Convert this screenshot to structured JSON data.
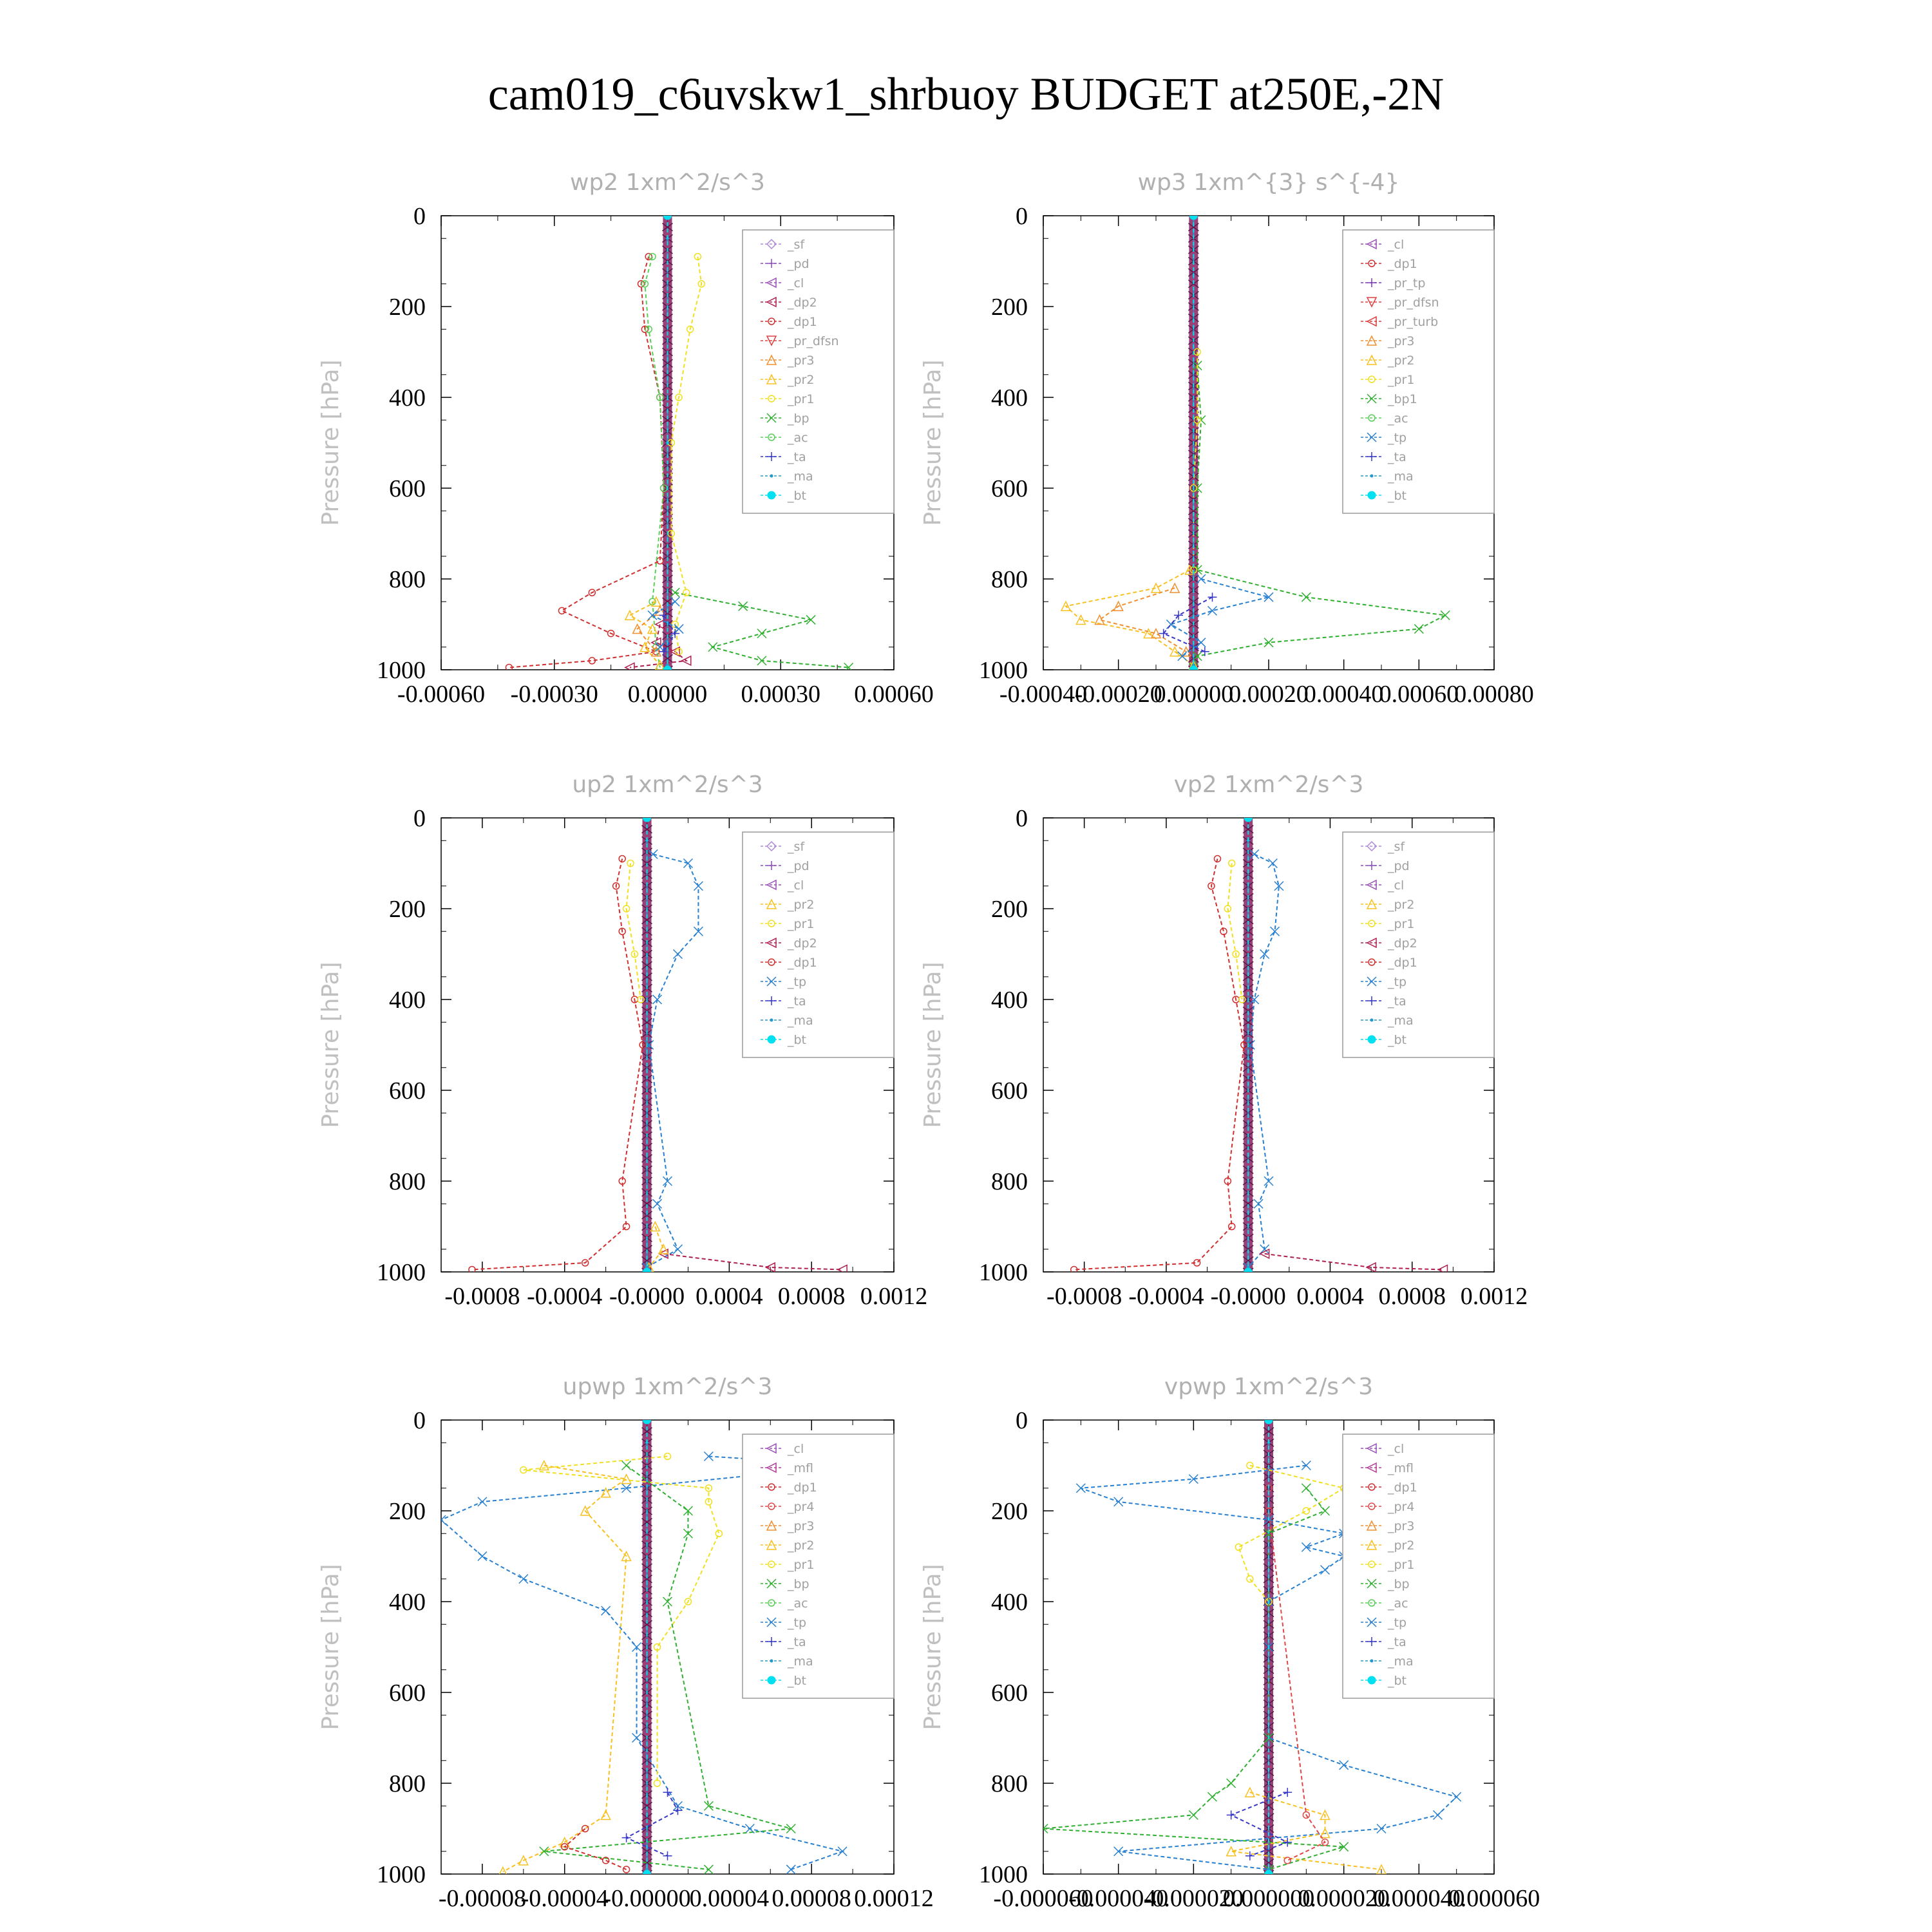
{
  "figure": {
    "title": "cam019_c6uvskw1_shrbuoy  BUDGET at250E,-2N"
  },
  "colors": {
    "_sf": "#b088d8",
    "_pd": "#8a4ec0",
    "_cl": "#9b4fb8",
    "_mfl": "#b03a9a",
    "_dp2": "#b02050",
    "_dp1": "#d03030",
    "_pr_dfsn": "#e04040",
    "_pr_tp": "#7a3ab8",
    "_pr_turb": "#d83a3a",
    "_pr4": "#e04848",
    "_pr3": "#f09030",
    "_pr2": "#f8c020",
    "_pr1": "#f0e020",
    "_bp": "#30b030",
    "_bp1": "#30b030",
    "_ac": "#58d058",
    "_tp": "#2880d0",
    "_ta": "#3838c8",
    "_ma": "#2898c8",
    "_bt": "#00e0f0"
  },
  "chart_data": [
    {
      "type": "line",
      "title": "wp2   1xm^2/s^3",
      "ylabel": "Pressure  [hPa]",
      "xlim": [
        -0.0006,
        0.0006
      ],
      "ylim": [
        1000,
        0
      ],
      "xticks": [
        "-0.00060",
        "-0.00030",
        "0.00000",
        "0.00030",
        "0.00060"
      ],
      "yticks": [
        "0",
        "200",
        "400",
        "600",
        "800",
        "1000"
      ],
      "legend": [
        "_sf",
        "_pd",
        "_cl",
        "_dp2",
        "_dp1",
        "_pr_dfsn",
        "_pr3",
        "_pr2",
        "_pr1",
        "_bp",
        "_ac",
        "_ta",
        "_ma",
        "_bt"
      ],
      "series": [
        {
          "name": "_dp1",
          "p": [
            90,
            150,
            250,
            400,
            600,
            760,
            830,
            870,
            920,
            960,
            980,
            995
          ],
          "v": [
            -5e-05,
            -7e-05,
            -6e-05,
            -2e-05,
            -1e-05,
            -2e-05,
            -0.0002,
            -0.00028,
            -0.00015,
            -3e-05,
            -0.0002,
            -0.00042
          ]
        },
        {
          "name": "_dp2",
          "p": [
            900,
            940,
            960,
            980,
            995
          ],
          "v": [
            -2e-05,
            -3e-05,
            2e-05,
            5e-05,
            -0.0001
          ]
        },
        {
          "name": "_bp",
          "p": [
            830,
            860,
            890,
            920,
            950,
            980,
            995
          ],
          "v": [
            2e-05,
            0.0002,
            0.00038,
            0.00025,
            0.00012,
            0.00025,
            0.00048
          ]
        },
        {
          "name": "_pr1",
          "p": [
            90,
            150,
            250,
            400,
            500,
            700,
            830,
            900,
            960
          ],
          "v": [
            8e-05,
            9e-05,
            6e-05,
            3e-05,
            1e-05,
            1e-05,
            5e-05,
            2e-05,
            3e-05
          ]
        },
        {
          "name": "_ac",
          "p": [
            90,
            150,
            250,
            400,
            600,
            850,
            950,
            995
          ],
          "v": [
            -4e-05,
            -6e-05,
            -5e-05,
            -2e-05,
            -1e-05,
            -4e-05,
            -3e-05,
            -2e-05
          ]
        },
        {
          "name": "_pr2",
          "p": [
            850,
            880,
            910,
            950,
            990
          ],
          "v": [
            -3e-05,
            -0.0001,
            -4e-05,
            -6e-05,
            -2e-05
          ]
        },
        {
          "name": "_pr3",
          "p": [
            870,
            910,
            960
          ],
          "v": [
            -2e-05,
            -8e-05,
            -3e-05
          ]
        },
        {
          "name": "_tp",
          "p": [
            850,
            880,
            910,
            950
          ],
          "v": [
            2e-05,
            -4e-05,
            3e-05,
            -2e-05
          ]
        },
        {
          "name": "_ta",
          "p": [
            880,
            920,
            960
          ],
          "v": [
            -1e-05,
            2e-05,
            -1e-05
          ]
        },
        {
          "name": "_ma",
          "p": [
            50,
            500,
            990
          ],
          "v": [
            0.0,
            0.0,
            0.0
          ]
        },
        {
          "name": "_bt",
          "p": [
            0,
            1000
          ],
          "v": [
            0.0,
            0.0
          ]
        }
      ]
    },
    {
      "type": "line",
      "title": "wp3   1xm^{3} s^{-4}",
      "ylabel": "Pressure  [hPa]",
      "xlim": [
        -0.0004,
        0.0008
      ],
      "ylim": [
        1000,
        0
      ],
      "xticks": [
        "-0.00040",
        "-0.00020",
        "0.00000",
        "0.00020",
        "0.00040",
        "0.00060",
        "0.00080"
      ],
      "yticks": [
        "0",
        "200",
        "400",
        "600",
        "800",
        "1000"
      ],
      "legend": [
        "_cl",
        "_dp1",
        "_pr_tp",
        "_pr_dfsn",
        "_pr_turb",
        "_pr3",
        "_pr2",
        "_pr1",
        "_bp1",
        "_ac",
        "_tp",
        "_ta",
        "_ma",
        "_bt"
      ],
      "series": [
        {
          "name": "_bp1",
          "p": [
            330,
            450,
            600,
            780,
            840,
            880,
            910,
            940,
            970,
            995
          ],
          "v": [
            1e-05,
            2e-05,
            1e-05,
            1e-05,
            0.0003,
            0.00067,
            0.0006,
            0.0002,
            1e-05,
            0.0
          ]
        },
        {
          "name": "_pr2",
          "p": [
            780,
            820,
            860,
            890,
            920,
            960,
            990
          ],
          "v": [
            -1e-05,
            -0.0001,
            -0.00034,
            -0.0003,
            -0.00012,
            -5e-05,
            0.0
          ]
        },
        {
          "name": "_pr3",
          "p": [
            820,
            860,
            890,
            920,
            960
          ],
          "v": [
            -5e-05,
            -0.0002,
            -0.00025,
            -0.0001,
            -2e-05
          ]
        },
        {
          "name": "_tp",
          "p": [
            800,
            840,
            870,
            900,
            940,
            970
          ],
          "v": [
            2e-05,
            0.0002,
            5e-05,
            -6e-05,
            2e-05,
            -3e-05
          ]
        },
        {
          "name": "_ta",
          "p": [
            840,
            880,
            920,
            960
          ],
          "v": [
            5e-05,
            -4e-05,
            -8e-05,
            3e-05
          ]
        },
        {
          "name": "_pr1",
          "p": [
            300,
            450,
            600,
            780
          ],
          "v": [
            1e-05,
            1e-05,
            0.0,
            0.0
          ]
        },
        {
          "name": "_ma",
          "p": [
            0,
            990
          ],
          "v": [
            0.0,
            0.0
          ]
        },
        {
          "name": "_bt",
          "p": [
            0,
            1000
          ],
          "v": [
            0.0,
            0.0
          ]
        }
      ]
    },
    {
      "type": "line",
      "title": "up2   1xm^2/s^3",
      "ylabel": "Pressure  [hPa]",
      "xlim": [
        -0.001,
        0.0012
      ],
      "ylim": [
        1000,
        0
      ],
      "xticks": [
        "-0.0008",
        "-0.0004",
        "-0.0000",
        "0.0004",
        "0.0008",
        "0.0012"
      ],
      "yticks": [
        "0",
        "200",
        "400",
        "600",
        "800",
        "1000"
      ],
      "legend": [
        "_sf",
        "_pd",
        "_cl",
        "_pr2",
        "_pr1",
        "_dp2",
        "_dp1",
        "_tp",
        "_ta",
        "_ma",
        "_bt"
      ],
      "series": [
        {
          "name": "_tp",
          "p": [
            80,
            100,
            150,
            250,
            300,
            400,
            500,
            800,
            850,
            950,
            990
          ],
          "v": [
            3e-05,
            0.0002,
            0.00025,
            0.00025,
            0.00015,
            5e-05,
            1e-05,
            0.0001,
            5e-05,
            0.00015,
            0.0
          ]
        },
        {
          "name": "_dp1",
          "p": [
            90,
            150,
            250,
            400,
            500,
            800,
            900,
            980,
            995
          ],
          "v": [
            -0.00012,
            -0.00015,
            -0.00012,
            -6e-05,
            -2e-05,
            -0.00012,
            -0.0001,
            -0.0003,
            -0.00085
          ]
        },
        {
          "name": "_pr1",
          "p": [
            100,
            200,
            300,
            400
          ],
          "v": [
            -8e-05,
            -0.0001,
            -6e-05,
            -3e-05
          ]
        },
        {
          "name": "_dp2",
          "p": [
            960,
            990,
            995
          ],
          "v": [
            8e-05,
            0.0006,
            0.00095
          ]
        },
        {
          "name": "_pr2",
          "p": [
            900,
            950,
            990
          ],
          "v": [
            4e-05,
            8e-05,
            1e-05
          ]
        },
        {
          "name": "_ma",
          "p": [
            50,
            990
          ],
          "v": [
            0.0,
            0.0
          ]
        },
        {
          "name": "_bt",
          "p": [
            0,
            1000
          ],
          "v": [
            0.0,
            0.0
          ]
        }
      ]
    },
    {
      "type": "line",
      "title": "vp2   1xm^2/s^3",
      "ylabel": "Pressure  [hPa]",
      "xlim": [
        -0.001,
        0.0012
      ],
      "ylim": [
        1000,
        0
      ],
      "xticks": [
        "-0.0008",
        "-0.0004",
        "-0.0000",
        "0.0004",
        "0.0008",
        "0.0012"
      ],
      "yticks": [
        "0",
        "200",
        "400",
        "600",
        "800",
        "1000"
      ],
      "legend": [
        "_sf",
        "_pd",
        "_cl",
        "_pr2",
        "_pr1",
        "_dp2",
        "_dp1",
        "_tp",
        "_ta",
        "_ma",
        "_bt"
      ],
      "series": [
        {
          "name": "_tp",
          "p": [
            80,
            100,
            150,
            250,
            300,
            400,
            500,
            800,
            850,
            950,
            990
          ],
          "v": [
            3e-05,
            0.00012,
            0.00015,
            0.00013,
            8e-05,
            3e-05,
            1e-05,
            0.0001,
            5e-05,
            8e-05,
            0.0
          ]
        },
        {
          "name": "_dp1",
          "p": [
            90,
            150,
            250,
            400,
            500,
            800,
            900,
            980,
            995
          ],
          "v": [
            -0.00015,
            -0.00018,
            -0.00012,
            -6e-05,
            -2e-05,
            -0.0001,
            -8e-05,
            -0.00025,
            -0.00085
          ]
        },
        {
          "name": "_pr1",
          "p": [
            100,
            200,
            300,
            400
          ],
          "v": [
            -8e-05,
            -0.0001,
            -6e-05,
            -3e-05
          ]
        },
        {
          "name": "_dp2",
          "p": [
            960,
            990,
            995
          ],
          "v": [
            8e-05,
            0.0006,
            0.00095
          ]
        },
        {
          "name": "_ma",
          "p": [
            50,
            990
          ],
          "v": [
            0.0,
            0.0
          ]
        },
        {
          "name": "_bt",
          "p": [
            0,
            1000
          ],
          "v": [
            0.0,
            0.0
          ]
        }
      ]
    },
    {
      "type": "line",
      "title": "upwp   1xm^2/s^3",
      "ylabel": "Pressure  [hPa]",
      "xlim": [
        -0.0001,
        0.00012
      ],
      "ylim": [
        1000,
        0
      ],
      "xticks": [
        "-0.00008",
        "-0.00004",
        "-0.00000",
        "0.00004",
        "0.00008",
        "0.00012"
      ],
      "yticks": [
        "0",
        "200",
        "400",
        "600",
        "800",
        "1000"
      ],
      "legend": [
        "_cl",
        "_mfl",
        "_dp1",
        "_pr4",
        "_pr3",
        "_pr2",
        "_pr1",
        "_bp",
        "_ac",
        "_tp",
        "_ta",
        "_ma",
        "_bt"
      ],
      "series": [
        {
          "name": "_tp",
          "p": [
            80,
            100,
            150,
            180,
            220,
            300,
            350,
            420,
            500,
            700,
            850,
            900,
            950,
            990
          ],
          "v": [
            3e-05,
            0.0001,
            -1e-05,
            -8e-05,
            -0.0001,
            -8e-05,
            -6e-05,
            -2e-05,
            -5e-06,
            -5e-06,
            1.5e-05,
            5e-05,
            9.5e-05,
            7e-05
          ]
        },
        {
          "name": "_pr1",
          "p": [
            80,
            110,
            150,
            180,
            250,
            400,
            500,
            800
          ],
          "v": [
            1e-05,
            -6e-05,
            3e-05,
            3e-05,
            3.5e-05,
            2e-05,
            5e-06,
            5e-06
          ]
        },
        {
          "name": "_pr2",
          "p": [
            100,
            130,
            160,
            200,
            300,
            870,
            930,
            970,
            995
          ],
          "v": [
            -5e-05,
            -1e-05,
            -2e-05,
            -3e-05,
            -1e-05,
            -2e-05,
            -4e-05,
            -6e-05,
            -7e-05
          ]
        },
        {
          "name": "_bp",
          "p": [
            100,
            200,
            250,
            400,
            850,
            900,
            950,
            990
          ],
          "v": [
            -1e-05,
            2e-05,
            2e-05,
            1e-05,
            3e-05,
            7e-05,
            -5e-05,
            3e-05
          ]
        },
        {
          "name": "_dp1",
          "p": [
            900,
            940,
            970,
            990
          ],
          "v": [
            -3e-05,
            -4e-05,
            -2e-05,
            -1e-05
          ]
        },
        {
          "name": "_ta",
          "p": [
            820,
            860,
            920,
            960
          ],
          "v": [
            1e-05,
            1.5e-05,
            -1e-05,
            1e-05
          ]
        },
        {
          "name": "_ma",
          "p": [
            50,
            990
          ],
          "v": [
            0.0,
            0.0
          ]
        },
        {
          "name": "_bt",
          "p": [
            0,
            1000
          ],
          "v": [
            0.0,
            0.0
          ]
        }
      ]
    },
    {
      "type": "line",
      "title": "vpwp   1xm^2/s^3",
      "ylabel": "Pressure  [hPa]",
      "xlim": [
        -6e-05,
        6e-05
      ],
      "ylim": [
        1000,
        0
      ],
      "xticks": [
        "-0.000060",
        "-0.000040",
        "-0.000020",
        "0.000000",
        "0.000020",
        "0.000040",
        "0.000060"
      ],
      "yticks": [
        "0",
        "200",
        "400",
        "600",
        "800",
        "1000"
      ],
      "legend": [
        "_cl",
        "_mfl",
        "_dp1",
        "_pr4",
        "_pr3",
        "_pr2",
        "_pr1",
        "_bp",
        "_ac",
        "_tp",
        "_ta",
        "_ma",
        "_bt"
      ],
      "series": [
        {
          "name": "_tp",
          "p": [
            100,
            130,
            150,
            180,
            220,
            250,
            280,
            300,
            330,
            400,
            500,
            700,
            760,
            830,
            870,
            900,
            950,
            990
          ],
          "v": [
            1e-05,
            -2e-05,
            -5e-05,
            -4e-05,
            0.0,
            2e-05,
            1e-05,
            2e-05,
            1.5e-05,
            0.0,
            0.0,
            0.0,
            2e-05,
            5e-05,
            4.5e-05,
            3e-05,
            -4e-05,
            0.0
          ]
        },
        {
          "name": "_pr1",
          "p": [
            100,
            150,
            200,
            280,
            350,
            400
          ],
          "v": [
            -5e-06,
            2e-05,
            1e-05,
            -8e-06,
            -5e-06,
            0.0
          ]
        },
        {
          "name": "_bp",
          "p": [
            150,
            200,
            250,
            700,
            800,
            830,
            870,
            900,
            940,
            990
          ],
          "v": [
            1e-05,
            1.5e-05,
            0.0,
            0.0,
            -1e-05,
            -1.5e-05,
            -2e-05,
            -6e-05,
            2e-05,
            0.0
          ]
        },
        {
          "name": "_pr2",
          "p": [
            820,
            870,
            910,
            950,
            990
          ],
          "v": [
            -5e-06,
            1.5e-05,
            1.5e-05,
            -1e-05,
            3e-05
          ]
        },
        {
          "name": "_ta",
          "p": [
            820,
            870,
            930,
            960
          ],
          "v": [
            5e-06,
            -1e-05,
            5e-06,
            -5e-06
          ]
        },
        {
          "name": "_pr4",
          "p": [
            150,
            200,
            870,
            930,
            970
          ],
          "v": [
            0.0,
            0.0,
            1e-05,
            1.5e-05,
            5e-06
          ]
        },
        {
          "name": "_ma",
          "p": [
            50,
            990
          ],
          "v": [
            0.0,
            0.0
          ]
        },
        {
          "name": "_bt",
          "p": [
            0,
            1000
          ],
          "v": [
            0.0,
            0.0
          ]
        }
      ]
    }
  ]
}
